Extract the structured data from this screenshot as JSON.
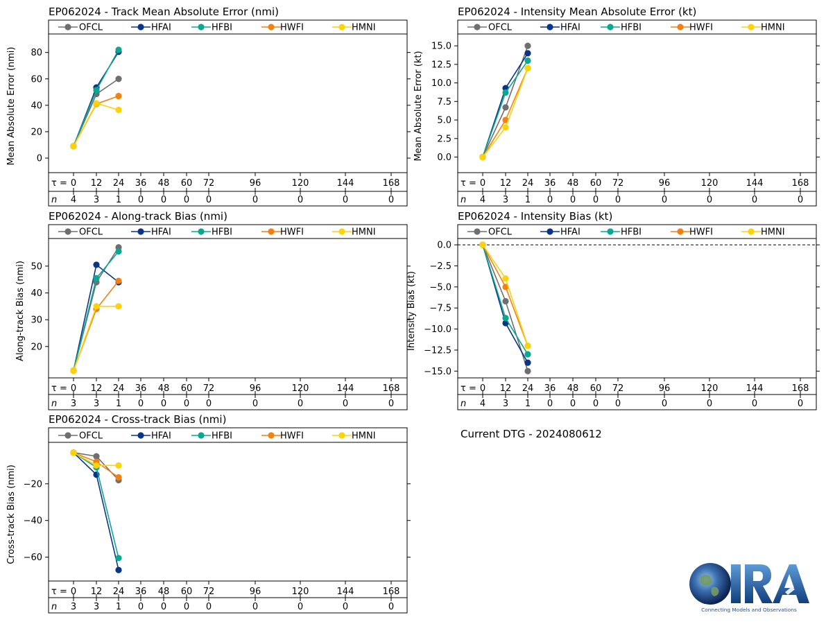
{
  "models": [
    {
      "name": "OFCL",
      "color": "#6e6e6e"
    },
    {
      "name": "HFAI",
      "color": "#0a3587"
    },
    {
      "name": "HFBI",
      "color": "#0aa891"
    },
    {
      "name": "HWFI",
      "color": "#f08214"
    },
    {
      "name": "HMNI",
      "color": "#fcd20a"
    }
  ],
  "tau_label": "τ =",
  "n_label": "n",
  "taus": [
    0,
    12,
    24,
    36,
    48,
    60,
    72,
    96,
    120,
    144,
    168
  ],
  "current_dtg": "Current DTG - 2024080612",
  "logo": {
    "text": "CIRA",
    "tagline": "Connecting Models and Observations"
  },
  "chart_data": [
    {
      "id": "track-mae",
      "type": "line",
      "title": "EP062024 - Track Mean Absolute Error (nmi)",
      "ylabel": "Mean Absolute Error (nmi)",
      "ylim": [
        -11,
        94
      ],
      "yticks": [
        0,
        20,
        40,
        60,
        80
      ],
      "ytick_labels": [
        "0",
        "20",
        "40",
        "60",
        "80"
      ],
      "zero_line": "solid",
      "n": [
        4,
        3,
        1,
        0,
        0,
        0,
        0,
        0,
        0,
        0,
        0
      ],
      "series": [
        {
          "name": "OFCL",
          "values": [
            9,
            48.5,
            60
          ]
        },
        {
          "name": "HFAI",
          "values": [
            9,
            53.5,
            80.5
          ]
        },
        {
          "name": "HFBI",
          "values": [
            9,
            51.5,
            82
          ]
        },
        {
          "name": "HWFI",
          "values": [
            9,
            41,
            47
          ]
        },
        {
          "name": "HMNI",
          "values": [
            9,
            41.5,
            36.5
          ]
        }
      ]
    },
    {
      "id": "intensity-mae",
      "type": "line",
      "title": "EP062024 - Intensity Mean Absolute Error (kt)",
      "ylabel": "Mean Absolute Error (kt)",
      "ylim": [
        -2.1,
        16.6
      ],
      "yticks": [
        0,
        2.5,
        5,
        7.5,
        10,
        12.5,
        15
      ],
      "ytick_labels": [
        "0.0",
        "2.5",
        "5.0",
        "7.5",
        "10.0",
        "12.5",
        "15.0"
      ],
      "zero_line": "solid",
      "n": [
        4,
        3,
        1,
        0,
        0,
        0,
        0,
        0,
        0,
        0,
        0
      ],
      "series": [
        {
          "name": "OFCL",
          "values": [
            0,
            6.7,
            15
          ]
        },
        {
          "name": "HFAI",
          "values": [
            0,
            9.3,
            14
          ]
        },
        {
          "name": "HFBI",
          "values": [
            0,
            8.7,
            13
          ]
        },
        {
          "name": "HWFI",
          "values": [
            0,
            5,
            12
          ]
        },
        {
          "name": "HMNI",
          "values": [
            0,
            4,
            12
          ]
        }
      ]
    },
    {
      "id": "along-track-bias",
      "type": "line",
      "title": "EP062024 - Along-track Bias (nmi)",
      "ylabel": "Along-track Bias (nmi)",
      "ylim": [
        8.3,
        60.3
      ],
      "yticks": [
        20,
        30,
        40,
        50
      ],
      "ytick_labels": [
        "20",
        "30",
        "40",
        "50"
      ],
      "zero_line": "none",
      "n": [
        3,
        3,
        1,
        0,
        0,
        0,
        0,
        0,
        0,
        0,
        0
      ],
      "series": [
        {
          "name": "OFCL",
          "values": [
            11,
            44,
            57
          ]
        },
        {
          "name": "HFAI",
          "values": [
            11,
            50.5,
            44
          ]
        },
        {
          "name": "HFBI",
          "values": [
            11,
            45.5,
            55.5
          ]
        },
        {
          "name": "HWFI",
          "values": [
            11,
            34,
            44.5
          ]
        },
        {
          "name": "HMNI",
          "values": [
            11,
            35,
            35
          ]
        }
      ]
    },
    {
      "id": "intensity-bias",
      "type": "line",
      "title": "EP062024 - Intensity Bias (kt)",
      "ylabel": "Intensity Bias (kt)",
      "ylim": [
        -15.8,
        0.75
      ],
      "yticks": [
        0,
        -2.5,
        -5,
        -7.5,
        -10,
        -12.5,
        -15
      ],
      "ytick_labels": [
        "0.0",
        "−2.5",
        "−5.0",
        "−7.5",
        "−10.0",
        "−12.5",
        "−15.0"
      ],
      "zero_line": "dashed",
      "n": [
        4,
        3,
        1,
        0,
        0,
        0,
        0,
        0,
        0,
        0,
        0
      ],
      "series": [
        {
          "name": "OFCL",
          "values": [
            0,
            -6.7,
            -15
          ]
        },
        {
          "name": "HFAI",
          "values": [
            0,
            -9.3,
            -14
          ]
        },
        {
          "name": "HFBI",
          "values": [
            0,
            -8.7,
            -13
          ]
        },
        {
          "name": "HWFI",
          "values": [
            0,
            -5,
            -12
          ]
        },
        {
          "name": "HMNI",
          "values": [
            0,
            -4,
            -12
          ]
        }
      ]
    },
    {
      "id": "cross-track-bias",
      "type": "line",
      "title": "EP062024 - Cross-track Bias (nmi)",
      "ylabel": "Cross-track Bias (nmi)",
      "ylim": [
        -73,
        2.6
      ],
      "yticks": [
        -20,
        -40,
        -60
      ],
      "ytick_labels": [
        "−20",
        "−40",
        "−60"
      ],
      "zero_line": "none",
      "n": [
        3,
        3,
        1,
        0,
        0,
        0,
        0,
        0,
        0,
        0,
        0
      ],
      "series": [
        {
          "name": "OFCL",
          "values": [
            -3,
            -5,
            -18
          ]
        },
        {
          "name": "HFAI",
          "values": [
            -3,
            -15,
            -67
          ]
        },
        {
          "name": "HFBI",
          "values": [
            -3,
            -11,
            -60.5
          ]
        },
        {
          "name": "HWFI",
          "values": [
            -3,
            -8,
            -16.5
          ]
        },
        {
          "name": "HMNI",
          "values": [
            -3,
            -10,
            -10
          ]
        }
      ]
    }
  ]
}
